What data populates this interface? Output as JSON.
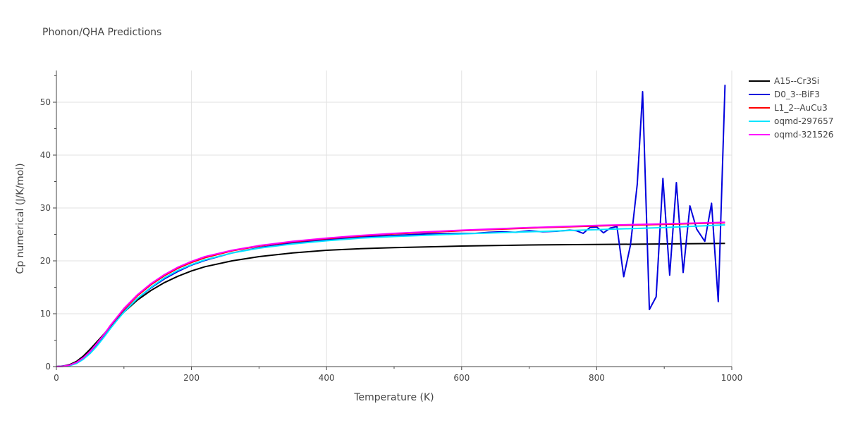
{
  "chart_data": {
    "type": "line",
    "title": "Phonon/QHA Predictions",
    "xlabel": "Temperature (K)",
    "ylabel": "Cp numerical (J/K/mol)",
    "xlim": [
      0,
      1000
    ],
    "ylim": [
      0,
      56
    ],
    "xticks": [
      0,
      200,
      400,
      600,
      800,
      1000
    ],
    "yticks": [
      0,
      10,
      20,
      30,
      40,
      50
    ],
    "grid": true,
    "legend_position": "top-right",
    "series": [
      {
        "name": "A15--Cr3Si",
        "color": "#000000",
        "x": [
          0,
          10,
          20,
          30,
          40,
          50,
          60,
          70,
          80,
          90,
          100,
          120,
          140,
          160,
          180,
          200,
          220,
          260,
          300,
          350,
          400,
          450,
          500,
          600,
          700,
          800,
          900,
          990
        ],
        "y": [
          0,
          0.1,
          0.4,
          1.0,
          2.0,
          3.3,
          4.7,
          6.1,
          7.6,
          9.0,
          10.3,
          12.6,
          14.4,
          15.9,
          17.1,
          18.1,
          18.9,
          20.0,
          20.8,
          21.5,
          22.0,
          22.3,
          22.5,
          22.8,
          23.0,
          23.1,
          23.2,
          23.3
        ]
      },
      {
        "name": "D0_3--BiF3",
        "color": "#0000dd",
        "x": [
          0,
          10,
          20,
          30,
          40,
          50,
          60,
          70,
          80,
          90,
          100,
          120,
          140,
          160,
          180,
          200,
          220,
          260,
          300,
          350,
          400,
          450,
          500,
          550,
          600,
          620,
          640,
          660,
          680,
          700,
          720,
          740,
          760,
          770,
          780,
          790,
          800,
          810,
          820,
          830,
          840,
          850,
          860,
          868,
          878,
          888,
          898,
          908,
          918,
          928,
          938,
          948,
          960,
          970,
          980,
          990
        ],
        "y": [
          0,
          0.1,
          0.3,
          0.8,
          1.6,
          2.8,
          4.3,
          5.8,
          7.4,
          8.9,
          10.4,
          12.9,
          14.9,
          16.6,
          18.0,
          19.2,
          20.1,
          21.5,
          22.5,
          23.4,
          24.0,
          24.5,
          24.8,
          25.1,
          25.2,
          25.2,
          25.4,
          25.5,
          25.4,
          25.7,
          25.5,
          25.6,
          25.8,
          25.7,
          25.2,
          26.3,
          26.4,
          25.3,
          26.2,
          26.5,
          17.0,
          23.0,
          34.5,
          52.0,
          10.8,
          13.2,
          35.6,
          17.3,
          34.8,
          17.8,
          30.4,
          26.0,
          23.7,
          30.9,
          12.3,
          53.3
        ]
      },
      {
        "name": "L1_2--AuCu3",
        "color": "#ff0000",
        "x": [
          0,
          10,
          20,
          30,
          40,
          50,
          60,
          70,
          80,
          90,
          100,
          120,
          140,
          160,
          180,
          200,
          220,
          260,
          300,
          350,
          400,
          450,
          500,
          600,
          700,
          800,
          900,
          990
        ],
        "y": [
          0,
          0.05,
          0.3,
          0.8,
          1.7,
          2.9,
          4.4,
          6.0,
          7.7,
          9.3,
          10.8,
          13.4,
          15.5,
          17.2,
          18.6,
          19.7,
          20.6,
          21.9,
          22.8,
          23.6,
          24.2,
          24.7,
          25.1,
          25.7,
          26.2,
          26.6,
          26.9,
          27.2
        ]
      },
      {
        "name": "oqmd-297657",
        "color": "#00e5ff",
        "x": [
          0,
          10,
          20,
          30,
          40,
          50,
          60,
          70,
          80,
          90,
          100,
          120,
          140,
          160,
          180,
          200,
          220,
          260,
          300,
          350,
          400,
          450,
          500,
          600,
          700,
          800,
          900,
          990
        ],
        "y": [
          0,
          0.05,
          0.2,
          0.6,
          1.4,
          2.5,
          3.9,
          5.5,
          7.2,
          8.8,
          10.3,
          12.9,
          15.0,
          16.8,
          18.2,
          19.3,
          20.2,
          21.5,
          22.4,
          23.2,
          23.8,
          24.3,
          24.6,
          25.1,
          25.5,
          25.9,
          26.3,
          26.8
        ]
      },
      {
        "name": "oqmd-321526",
        "color": "#ff00ff",
        "x": [
          0,
          10,
          20,
          30,
          40,
          50,
          60,
          70,
          80,
          90,
          100,
          120,
          140,
          160,
          180,
          200,
          220,
          260,
          300,
          350,
          400,
          450,
          500,
          600,
          700,
          800,
          900,
          990
        ],
        "y": [
          0,
          0.05,
          0.3,
          0.8,
          1.7,
          2.9,
          4.4,
          6.0,
          7.8,
          9.4,
          11.0,
          13.6,
          15.7,
          17.4,
          18.8,
          19.9,
          20.8,
          22.0,
          22.9,
          23.7,
          24.3,
          24.8,
          25.2,
          25.8,
          26.3,
          26.7,
          27.0,
          27.3
        ]
      }
    ]
  }
}
